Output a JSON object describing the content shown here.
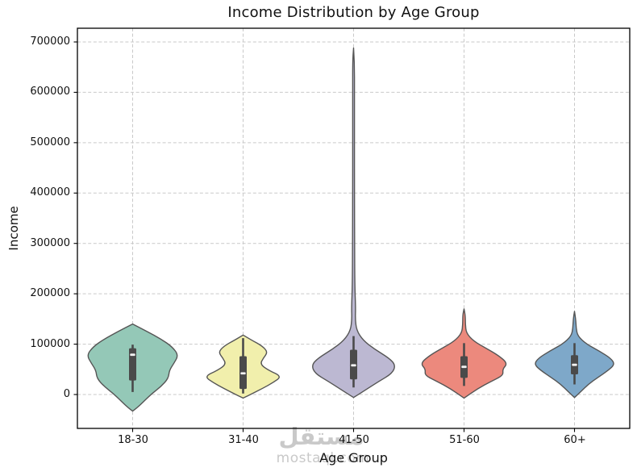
{
  "watermark": {
    "arabic": "مستقل",
    "latin": "mostaql.com"
  },
  "chart_data": {
    "type": "violin",
    "title": "Income Distribution by Age Group",
    "xlabel": "Age Group",
    "ylabel": "Income",
    "categories": [
      "18-30",
      "31-40",
      "41-50",
      "51-60",
      "60+"
    ],
    "yticks": [
      0,
      100000,
      200000,
      300000,
      400000,
      500000,
      600000,
      700000
    ],
    "ytick_labels": [
      "0",
      "100000",
      "200000",
      "300000",
      "400000",
      "500000",
      "600000",
      "700000"
    ],
    "ylim": [
      -67000,
      727000
    ],
    "grid": true,
    "legend": "none",
    "colors": {
      "edge": "#555555",
      "box": "#4a4a4a",
      "median": "#f2f2f2",
      "grid": "#c9c9c9",
      "spine": "#000000"
    },
    "series": [
      {
        "label": "18-30",
        "color": "#94c8b7",
        "width": 0.83,
        "profile": [
          [
            140000,
            0
          ],
          [
            125000,
            0.32
          ],
          [
            110000,
            0.62
          ],
          [
            95000,
            0.86
          ],
          [
            78000,
            1.0
          ],
          [
            62000,
            0.9
          ],
          [
            48000,
            0.8
          ],
          [
            32000,
            0.78
          ],
          [
            16000,
            0.62
          ],
          [
            2000,
            0.42
          ],
          [
            -14000,
            0.24
          ],
          [
            -26000,
            0.1
          ],
          [
            -33000,
            0
          ]
        ],
        "box": {
          "whisker_hi": 99000,
          "q3": 92000,
          "median": 79000,
          "q1": 28000,
          "whisker_lo": 5000
        }
      },
      {
        "label": "31-40",
        "color": "#f1efac",
        "width": 0.7,
        "profile": [
          [
            118000,
            0
          ],
          [
            108000,
            0.22
          ],
          [
            96000,
            0.5
          ],
          [
            84000,
            0.64
          ],
          [
            72000,
            0.52
          ],
          [
            60000,
            0.44
          ],
          [
            48000,
            0.66
          ],
          [
            36000,
            1.0
          ],
          [
            24000,
            0.78
          ],
          [
            12000,
            0.5
          ],
          [
            2000,
            0.24
          ],
          [
            -7000,
            0
          ]
        ],
        "box": {
          "whisker_hi": 112000,
          "q3": 76000,
          "median": 42000,
          "q1": 11000,
          "whisker_lo": 2000
        }
      },
      {
        "label": "41-50",
        "color": "#bcb8d2",
        "width": 0.76,
        "profile": [
          [
            688000,
            0
          ],
          [
            660000,
            0.022
          ],
          [
            600000,
            0.022
          ],
          [
            500000,
            0.022
          ],
          [
            400000,
            0.022
          ],
          [
            300000,
            0.024
          ],
          [
            220000,
            0.028
          ],
          [
            170000,
            0.05
          ],
          [
            150000,
            0.04
          ],
          [
            128000,
            0.07
          ],
          [
            108000,
            0.22
          ],
          [
            90000,
            0.5
          ],
          [
            72000,
            0.85
          ],
          [
            58000,
            1.0
          ],
          [
            42000,
            0.92
          ],
          [
            26000,
            0.6
          ],
          [
            10000,
            0.3
          ],
          [
            -6000,
            0
          ]
        ],
        "box": {
          "whisker_hi": 116000,
          "q3": 89000,
          "median": 58000,
          "q1": 30000,
          "whisker_lo": 14000
        }
      },
      {
        "label": "51-60",
        "color": "#ec897d",
        "width": 0.79,
        "profile": [
          [
            170000,
            0
          ],
          [
            158000,
            0.03
          ],
          [
            140000,
            0.03
          ],
          [
            122000,
            0.05
          ],
          [
            106000,
            0.22
          ],
          [
            92000,
            0.5
          ],
          [
            78000,
            0.78
          ],
          [
            62000,
            1.0
          ],
          [
            50000,
            0.88
          ],
          [
            38000,
            0.9
          ],
          [
            26000,
            0.62
          ],
          [
            12000,
            0.32
          ],
          [
            -7000,
            0
          ]
        ],
        "box": {
          "whisker_hi": 102000,
          "q3": 76000,
          "median": 55000,
          "q1": 33000,
          "whisker_lo": 17000
        }
      },
      {
        "label": "60+",
        "color": "#7ea8c9",
        "width": 0.73,
        "profile": [
          [
            165000,
            0
          ],
          [
            150000,
            0.03
          ],
          [
            132000,
            0.04
          ],
          [
            116000,
            0.08
          ],
          [
            100000,
            0.3
          ],
          [
            86000,
            0.62
          ],
          [
            72000,
            0.9
          ],
          [
            60000,
            1.0
          ],
          [
            48000,
            0.84
          ],
          [
            34000,
            0.58
          ],
          [
            20000,
            0.34
          ],
          [
            6000,
            0.16
          ],
          [
            -6000,
            0
          ]
        ],
        "box": {
          "whisker_hi": 102000,
          "q3": 78000,
          "median": 59000,
          "q1": 40000,
          "whisker_lo": 20000
        }
      }
    ]
  }
}
